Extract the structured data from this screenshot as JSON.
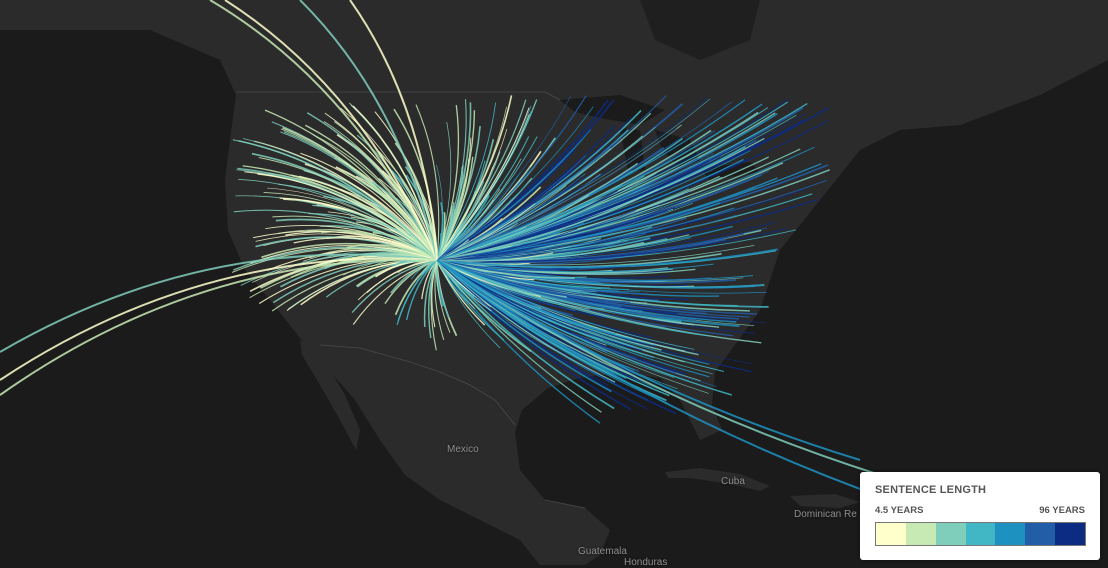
{
  "map": {
    "place_labels": [
      {
        "id": "mexico",
        "text": "Mexico"
      },
      {
        "id": "cuba",
        "text": "Cuba"
      },
      {
        "id": "dominican-republic",
        "text": "Dominican Re"
      },
      {
        "id": "guatemala",
        "text": "Guatemala"
      },
      {
        "id": "honduras",
        "text": "Honduras"
      }
    ],
    "colors": {
      "background": "#1b1b1b",
      "land": "#2b2b2b",
      "border": "#4a4a4a"
    }
  },
  "legend": {
    "title": "SENTENCE LENGTH",
    "min_label": "4.5 YEARS",
    "max_label": "96 YEARS",
    "scale": [
      "#ffffcc",
      "#c7e9b4",
      "#7fcdbb",
      "#41b6c4",
      "#1d91c0",
      "#225ea8",
      "#0c2c84"
    ]
  }
}
